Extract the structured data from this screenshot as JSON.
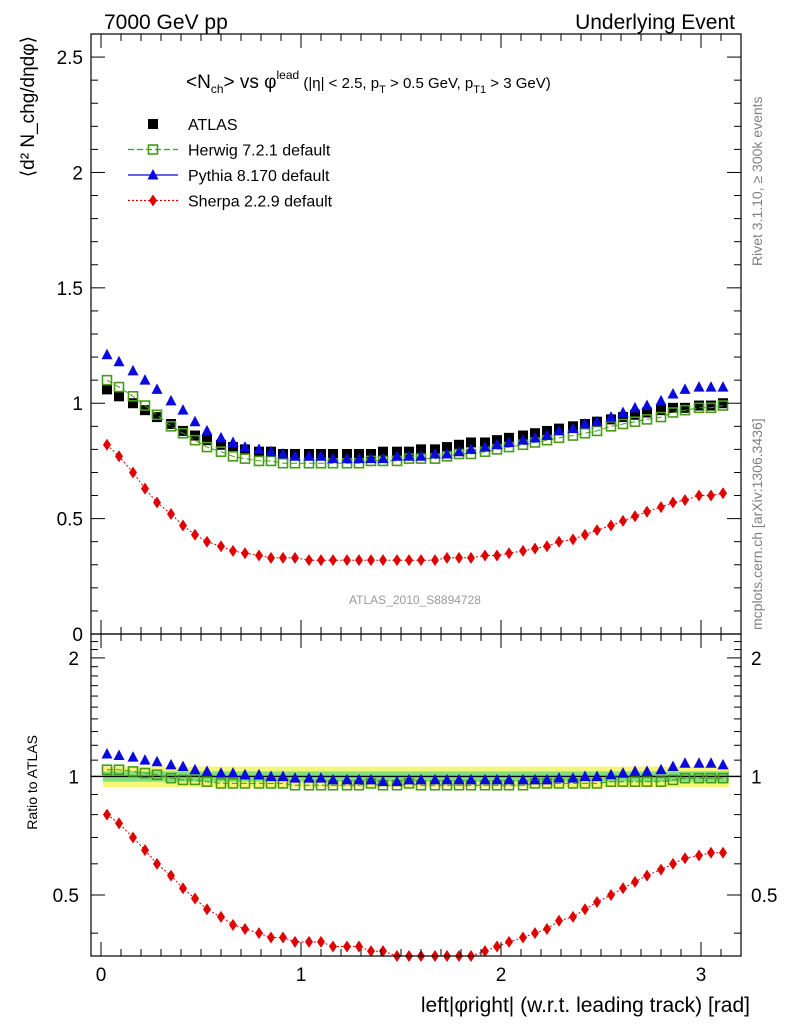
{
  "header": {
    "left": "7000 GeV pp",
    "right": "Underlying Event"
  },
  "side": {
    "rivet": "Rivet 3.1.10, ≥ 300k events",
    "mcplots": "mcplots.cern.ch [arXiv:1306.3436]"
  },
  "plot_title": {
    "main": "<N",
    "sub_ch": "ch",
    "mid": "> vs φ",
    "sup_lead": "lead",
    "cut_a": " (|η| < 2.5, p",
    "cut_sub_t": "T",
    "cut_b": " > 0.5 GeV, p",
    "cut_sub_t1": "T1",
    "cut_c": " > 3 GeV)"
  },
  "watermark": "ATLAS_2010_S8894728",
  "y_label_top": "⟨d² N_chg/dηdφ⟩",
  "y_label_bottom": "Ratio to ATLAS",
  "x_label": "left|φright| (w.r.t. leading track) [rad]",
  "colors": {
    "atlas": "#000000",
    "herwig": "#4a9a1a",
    "pythia": "#0a0adf",
    "sherpa": "#e00000",
    "band_inner": "#7fe07f",
    "band_outer": "#f5f57a"
  },
  "chart_data": [
    {
      "type": "scatter",
      "panel": "main",
      "xlim": [
        -0.05,
        3.2
      ],
      "ylim": [
        0,
        2.6
      ],
      "yticks": [
        0,
        0.5,
        1,
        1.5,
        2,
        2.5
      ],
      "xticks": [
        0,
        1,
        2,
        3
      ],
      "legend_position": "top-left",
      "series": [
        {
          "name": "ATLAS",
          "marker": "square-filled",
          "x": [
            0.03,
            0.09,
            0.16,
            0.22,
            0.28,
            0.35,
            0.41,
            0.47,
            0.53,
            0.6,
            0.66,
            0.72,
            0.79,
            0.85,
            0.91,
            0.97,
            1.04,
            1.1,
            1.16,
            1.23,
            1.29,
            1.35,
            1.41,
            1.48,
            1.54,
            1.6,
            1.67,
            1.73,
            1.79,
            1.85,
            1.92,
            1.98,
            2.04,
            2.11,
            2.17,
            2.23,
            2.29,
            2.36,
            2.42,
            2.48,
            2.55,
            2.61,
            2.67,
            2.73,
            2.8,
            2.86,
            2.92,
            2.99,
            3.05,
            3.11
          ],
          "y": [
            1.06,
            1.03,
            1.0,
            0.97,
            0.94,
            0.91,
            0.88,
            0.86,
            0.84,
            0.82,
            0.81,
            0.8,
            0.79,
            0.79,
            0.78,
            0.78,
            0.78,
            0.78,
            0.78,
            0.78,
            0.78,
            0.78,
            0.79,
            0.79,
            0.79,
            0.8,
            0.8,
            0.81,
            0.82,
            0.83,
            0.83,
            0.84,
            0.85,
            0.86,
            0.87,
            0.88,
            0.89,
            0.9,
            0.91,
            0.92,
            0.93,
            0.94,
            0.95,
            0.96,
            0.97,
            0.98,
            0.98,
            0.99,
            0.99,
            1.0
          ]
        },
        {
          "name": "Herwig 7.2.1 default",
          "marker": "square-open",
          "x": [
            0.03,
            0.09,
            0.16,
            0.22,
            0.28,
            0.35,
            0.41,
            0.47,
            0.53,
            0.6,
            0.66,
            0.72,
            0.79,
            0.85,
            0.91,
            0.97,
            1.04,
            1.1,
            1.16,
            1.23,
            1.29,
            1.35,
            1.41,
            1.48,
            1.54,
            1.6,
            1.67,
            1.73,
            1.79,
            1.85,
            1.92,
            1.98,
            2.04,
            2.11,
            2.17,
            2.23,
            2.29,
            2.36,
            2.42,
            2.48,
            2.55,
            2.61,
            2.67,
            2.73,
            2.8,
            2.86,
            2.92,
            2.99,
            3.05,
            3.11
          ],
          "y": [
            1.1,
            1.07,
            1.03,
            0.99,
            0.95,
            0.9,
            0.87,
            0.84,
            0.81,
            0.79,
            0.77,
            0.76,
            0.75,
            0.75,
            0.74,
            0.74,
            0.74,
            0.74,
            0.74,
            0.74,
            0.74,
            0.75,
            0.75,
            0.75,
            0.76,
            0.76,
            0.76,
            0.77,
            0.78,
            0.78,
            0.79,
            0.8,
            0.81,
            0.82,
            0.83,
            0.84,
            0.85,
            0.86,
            0.87,
            0.88,
            0.9,
            0.91,
            0.92,
            0.93,
            0.94,
            0.96,
            0.97,
            0.98,
            0.98,
            0.99
          ]
        },
        {
          "name": "Pythia 8.170 default",
          "marker": "triangle-filled",
          "x": [
            0.03,
            0.09,
            0.16,
            0.22,
            0.28,
            0.35,
            0.41,
            0.47,
            0.53,
            0.6,
            0.66,
            0.72,
            0.79,
            0.85,
            0.91,
            0.97,
            1.04,
            1.1,
            1.16,
            1.23,
            1.29,
            1.35,
            1.41,
            1.48,
            1.54,
            1.6,
            1.67,
            1.73,
            1.79,
            1.85,
            1.92,
            1.98,
            2.04,
            2.11,
            2.17,
            2.23,
            2.29,
            2.36,
            2.42,
            2.48,
            2.55,
            2.61,
            2.67,
            2.73,
            2.8,
            2.86,
            2.92,
            2.99,
            3.05,
            3.11
          ],
          "y": [
            1.21,
            1.18,
            1.14,
            1.1,
            1.06,
            1.01,
            0.97,
            0.92,
            0.88,
            0.85,
            0.83,
            0.81,
            0.8,
            0.79,
            0.78,
            0.77,
            0.77,
            0.77,
            0.76,
            0.76,
            0.76,
            0.76,
            0.76,
            0.77,
            0.77,
            0.77,
            0.78,
            0.78,
            0.79,
            0.8,
            0.81,
            0.82,
            0.83,
            0.84,
            0.85,
            0.86,
            0.88,
            0.89,
            0.91,
            0.92,
            0.94,
            0.96,
            0.98,
            0.99,
            1.01,
            1.04,
            1.06,
            1.07,
            1.07,
            1.07
          ]
        },
        {
          "name": "Sherpa 2.2.9 default",
          "marker": "diamond-filled",
          "x": [
            0.03,
            0.09,
            0.16,
            0.22,
            0.28,
            0.35,
            0.41,
            0.47,
            0.53,
            0.6,
            0.66,
            0.72,
            0.79,
            0.85,
            0.91,
            0.97,
            1.04,
            1.1,
            1.16,
            1.23,
            1.29,
            1.35,
            1.41,
            1.48,
            1.54,
            1.6,
            1.67,
            1.73,
            1.79,
            1.85,
            1.92,
            1.98,
            2.04,
            2.11,
            2.17,
            2.23,
            2.29,
            2.36,
            2.42,
            2.48,
            2.55,
            2.61,
            2.67,
            2.73,
            2.8,
            2.86,
            2.92,
            2.99,
            3.05,
            3.11
          ],
          "y": [
            0.82,
            0.77,
            0.7,
            0.63,
            0.57,
            0.52,
            0.47,
            0.43,
            0.4,
            0.38,
            0.36,
            0.35,
            0.34,
            0.33,
            0.33,
            0.33,
            0.32,
            0.32,
            0.32,
            0.32,
            0.32,
            0.32,
            0.32,
            0.32,
            0.32,
            0.32,
            0.32,
            0.33,
            0.33,
            0.33,
            0.34,
            0.34,
            0.35,
            0.36,
            0.37,
            0.38,
            0.4,
            0.41,
            0.43,
            0.45,
            0.47,
            0.49,
            0.51,
            0.53,
            0.55,
            0.57,
            0.58,
            0.6,
            0.6,
            0.61
          ]
        }
      ]
    },
    {
      "type": "scatter",
      "panel": "ratio",
      "ylabel": "Ratio to ATLAS",
      "xlabel": "left|φright| (w.r.t. leading track) [rad]",
      "xlim": [
        -0.05,
        3.2
      ],
      "ylim": [
        0.35,
        2.3
      ],
      "yticks": [
        0.5,
        1,
        2
      ],
      "xticks": [
        0,
        1,
        2,
        3
      ],
      "band_inner": [
        0.97,
        1.03
      ],
      "band_outer": [
        0.94,
        1.06
      ],
      "series": [
        {
          "name": "Herwig 7.2.1 default",
          "marker": "square-open",
          "x": [
            0.03,
            0.09,
            0.16,
            0.22,
            0.28,
            0.35,
            0.41,
            0.47,
            0.53,
            0.6,
            0.66,
            0.72,
            0.79,
            0.85,
            0.91,
            0.97,
            1.04,
            1.1,
            1.16,
            1.23,
            1.29,
            1.35,
            1.41,
            1.48,
            1.54,
            1.6,
            1.67,
            1.73,
            1.79,
            1.85,
            1.92,
            1.98,
            2.04,
            2.11,
            2.17,
            2.23,
            2.29,
            2.36,
            2.42,
            2.48,
            2.55,
            2.61,
            2.67,
            2.73,
            2.8,
            2.86,
            2.92,
            2.99,
            3.05,
            3.11
          ],
          "y": [
            1.04,
            1.04,
            1.03,
            1.02,
            1.01,
            0.99,
            0.98,
            0.98,
            0.97,
            0.96,
            0.96,
            0.96,
            0.96,
            0.96,
            0.96,
            0.95,
            0.95,
            0.95,
            0.95,
            0.95,
            0.95,
            0.96,
            0.95,
            0.95,
            0.96,
            0.95,
            0.95,
            0.95,
            0.95,
            0.95,
            0.95,
            0.95,
            0.95,
            0.95,
            0.96,
            0.96,
            0.96,
            0.96,
            0.96,
            0.96,
            0.97,
            0.97,
            0.97,
            0.97,
            0.97,
            0.98,
            0.99,
            0.99,
            0.99,
            0.99
          ]
        },
        {
          "name": "Pythia 8.170 default",
          "marker": "triangle-filled",
          "x": [
            0.03,
            0.09,
            0.16,
            0.22,
            0.28,
            0.35,
            0.41,
            0.47,
            0.53,
            0.6,
            0.66,
            0.72,
            0.79,
            0.85,
            0.91,
            0.97,
            1.04,
            1.1,
            1.16,
            1.23,
            1.29,
            1.35,
            1.41,
            1.48,
            1.54,
            1.6,
            1.67,
            1.73,
            1.79,
            1.85,
            1.92,
            1.98,
            2.04,
            2.11,
            2.17,
            2.23,
            2.29,
            2.36,
            2.42,
            2.48,
            2.55,
            2.61,
            2.67,
            2.73,
            2.8,
            2.86,
            2.92,
            2.99,
            3.05,
            3.11
          ],
          "y": [
            1.14,
            1.13,
            1.12,
            1.1,
            1.09,
            1.07,
            1.06,
            1.04,
            1.03,
            1.02,
            1.02,
            1.01,
            1.01,
            1.0,
            1.0,
            0.99,
            0.99,
            0.99,
            0.98,
            0.98,
            0.98,
            0.98,
            0.97,
            0.97,
            0.98,
            0.98,
            0.98,
            0.98,
            0.98,
            0.98,
            0.98,
            0.98,
            0.98,
            0.98,
            0.98,
            0.98,
            0.99,
            0.99,
            1.0,
            1.0,
            1.01,
            1.02,
            1.03,
            1.03,
            1.04,
            1.06,
            1.08,
            1.08,
            1.08,
            1.07
          ]
        },
        {
          "name": "Sherpa 2.2.9 default",
          "marker": "diamond-filled",
          "x": [
            0.03,
            0.09,
            0.16,
            0.22,
            0.28,
            0.35,
            0.41,
            0.47,
            0.53,
            0.6,
            0.66,
            0.72,
            0.79,
            0.85,
            0.91,
            0.97,
            1.04,
            1.1,
            1.16,
            1.23,
            1.29,
            1.35,
            1.41,
            1.48,
            1.54,
            1.6,
            1.67,
            1.73,
            1.79,
            1.85,
            1.92,
            1.98,
            2.04,
            2.11,
            2.17,
            2.23,
            2.29,
            2.36,
            2.42,
            2.48,
            2.55,
            2.61,
            2.67,
            2.73,
            2.8,
            2.86,
            2.92,
            2.99,
            3.05,
            3.11
          ],
          "y": [
            0.8,
            0.76,
            0.7,
            0.65,
            0.6,
            0.56,
            0.52,
            0.49,
            0.46,
            0.44,
            0.42,
            0.41,
            0.4,
            0.39,
            0.39,
            0.38,
            0.38,
            0.38,
            0.37,
            0.37,
            0.37,
            0.36,
            0.36,
            0.35,
            0.35,
            0.35,
            0.35,
            0.35,
            0.35,
            0.35,
            0.36,
            0.37,
            0.38,
            0.39,
            0.4,
            0.41,
            0.43,
            0.44,
            0.46,
            0.48,
            0.5,
            0.52,
            0.54,
            0.56,
            0.58,
            0.6,
            0.62,
            0.63,
            0.64,
            0.64
          ]
        }
      ]
    }
  ]
}
